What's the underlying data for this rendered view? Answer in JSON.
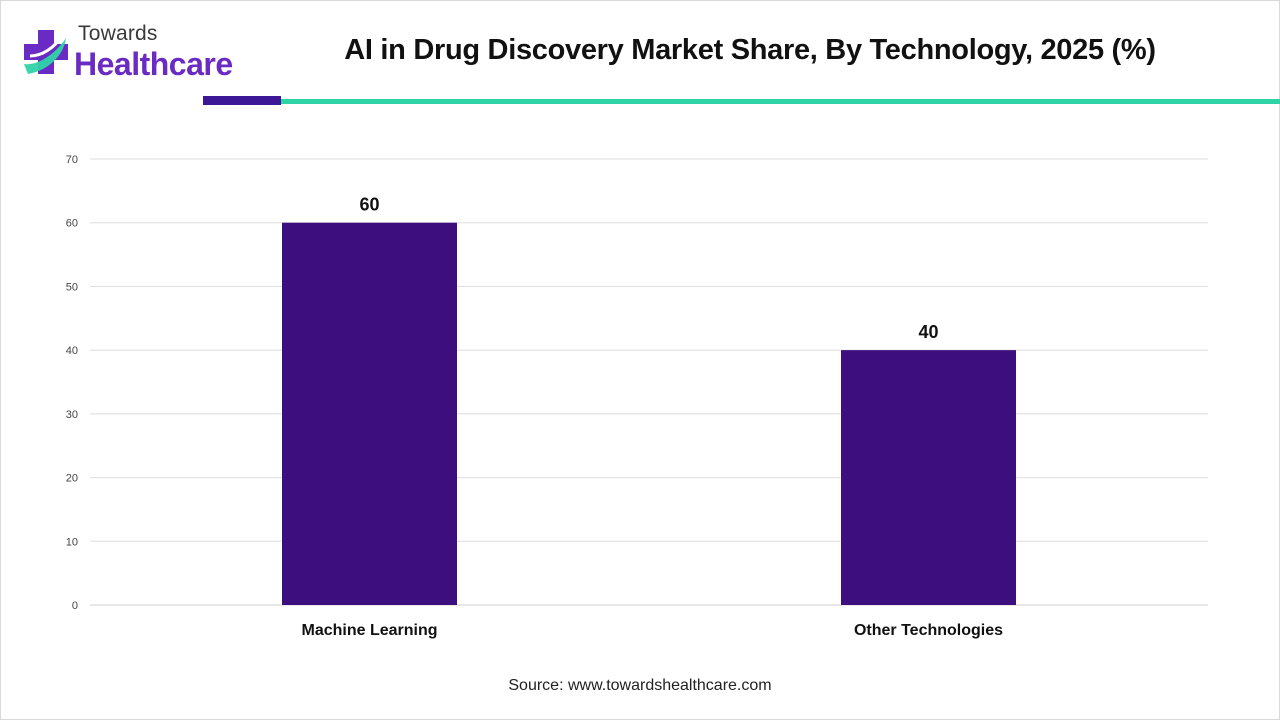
{
  "brand": {
    "name_small": "Towards",
    "name_big": "Healthcare",
    "colors": {
      "purple": "#6a2bc4",
      "teal": "#2fd3a6",
      "dark_purple": "#3d1896"
    }
  },
  "title": "AI in Drug Discovery Market Share, By Technology, 2025 (%)",
  "source": "Source: www.towardshealthcare.com",
  "chart_data": {
    "type": "bar",
    "title": "AI in Drug Discovery Market Share, By Technology, 2025 (%)",
    "categories": [
      "Machine Learning",
      "Other Technologies"
    ],
    "values": [
      60,
      40
    ],
    "value_labels": [
      "60",
      "40"
    ],
    "ylim": [
      0,
      70
    ],
    "yticks": [
      0,
      10,
      20,
      30,
      40,
      50,
      60,
      70
    ],
    "ytick_labels": [
      "0",
      "10",
      "20",
      "30",
      "40",
      "50",
      "60",
      "70"
    ],
    "xlabel": "",
    "ylabel": "",
    "grid": true,
    "legend": "none",
    "bar_color": "#3d0e7e"
  }
}
